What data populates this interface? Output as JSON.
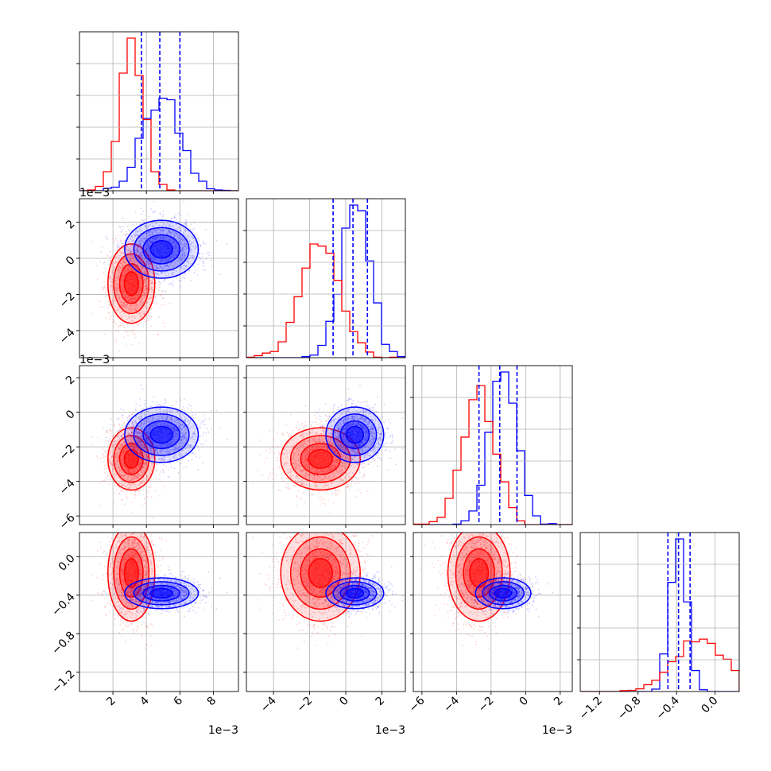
{
  "chart_data": {
    "type": "corner",
    "grid": true,
    "colors": {
      "series_a": "#ff0000",
      "series_b": "#0000ff"
    },
    "series": [
      {
        "color": "#ff0000",
        "means": [
          0.0031,
          -0.0014,
          -0.0027,
          -0.17
        ],
        "stds": [
          0.0007,
          0.0011,
          0.0009,
          0.25
        ]
      },
      {
        "color": "#0000ff",
        "means": [
          0.0049,
          0.0005,
          -0.0013,
          -0.38
        ],
        "stds": [
          0.0011,
          0.0008,
          0.0008,
          0.08
        ]
      }
    ],
    "quantile_lines": {
      "color": "#0000ff",
      "style": "dashed",
      "values": [
        [
          0.0037,
          0.0048,
          0.006
        ],
        [
          -0.0007,
          0.0004,
          0.0012
        ],
        [
          -0.0027,
          -0.0015,
          -0.0005
        ],
        [
          -0.49,
          -0.38,
          -0.26
        ]
      ]
    },
    "axes": [
      {
        "range": [
          0.0,
          0.0095
        ],
        "ticks": [
          2,
          4,
          6,
          8
        ],
        "exponent": "1e−3"
      },
      {
        "range": [
          -0.0055,
          0.0033
        ],
        "ticks": [
          -4,
          -2,
          0,
          2
        ],
        "exponent": "1e−3"
      },
      {
        "range": [
          -0.0065,
          0.0027
        ],
        "ticks": [
          -6,
          -4,
          -2,
          0,
          2
        ],
        "exponent": "1e−3"
      },
      {
        "range": [
          -1.4,
          0.25
        ],
        "ticks": [
          "−1.2",
          "−0.8",
          "−0.4",
          "0.0"
        ],
        "tick_values": [
          -1.2,
          -0.8,
          -0.4,
          0.0
        ],
        "exponent": ""
      }
    ],
    "x_tick_labels": [
      [
        "2",
        "4",
        "6",
        "8"
      ],
      [
        "−4",
        "−2",
        "0",
        "2"
      ],
      [
        "−6",
        "−4",
        "−2",
        "0",
        "2"
      ],
      [
        "−1.2",
        "−0.8",
        "−0.4",
        "0.0"
      ]
    ],
    "y_tick_labels": [
      [
        "−4",
        "−2",
        "0",
        "2"
      ],
      [
        "−6",
        "−4",
        "−2",
        "0",
        "2"
      ],
      [
        "−1.2",
        "−0.8",
        "−0.4",
        "0.0"
      ]
    ],
    "y_offset_labels": [
      "1e−3",
      "1e−3"
    ],
    "x_offset_labels": [
      "1e−3",
      "1e−3",
      "1e−3"
    ]
  }
}
